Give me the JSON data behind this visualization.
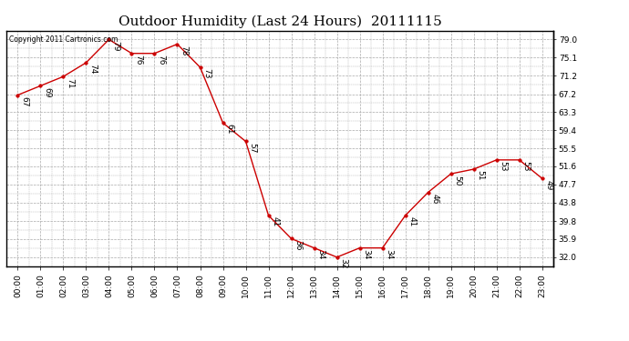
{
  "title": "Outdoor Humidity (Last 24 Hours)  20111115",
  "copyright": "Copyright 2011 Cartronics.com",
  "x_labels": [
    "00:00",
    "01:00",
    "02:00",
    "03:00",
    "04:00",
    "05:00",
    "06:00",
    "07:00",
    "08:00",
    "09:00",
    "10:00",
    "11:00",
    "12:00",
    "13:00",
    "14:00",
    "15:00",
    "16:00",
    "17:00",
    "18:00",
    "19:00",
    "20:00",
    "21:00",
    "22:00",
    "23:00"
  ],
  "y_values": [
    67,
    69,
    71,
    74,
    79,
    76,
    76,
    78,
    73,
    61,
    57,
    41,
    36,
    34,
    32,
    34,
    34,
    41,
    46,
    50,
    51,
    53,
    53,
    49
  ],
  "y_right_ticks": [
    79.0,
    75.1,
    71.2,
    67.2,
    63.3,
    59.4,
    55.5,
    51.6,
    47.7,
    43.8,
    39.8,
    35.9,
    32.0
  ],
  "ylim_min": 30.1,
  "ylim_max": 80.9,
  "line_color": "#cc0000",
  "marker_color": "#cc0000",
  "bg_color": "#ffffff",
  "grid_color": "#aaaaaa",
  "title_fontsize": 11,
  "label_fontsize": 6.5,
  "annot_fontsize": 6.5
}
